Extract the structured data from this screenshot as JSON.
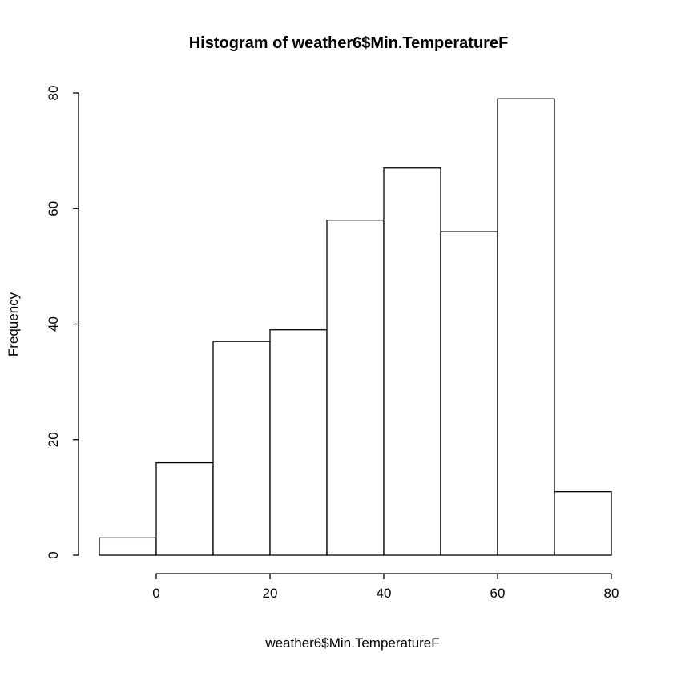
{
  "chart_data": {
    "type": "bar",
    "title": "Histogram of weather6$Min.TemperatureF",
    "xlabel": "weather6$Min.TemperatureF",
    "ylabel": "Frequency",
    "bin_edges": [
      -10,
      0,
      10,
      20,
      30,
      40,
      50,
      60,
      70,
      80
    ],
    "values": [
      3,
      16,
      37,
      39,
      58,
      67,
      56,
      79,
      11
    ],
    "xlim": [
      -10,
      80
    ],
    "ylim": [
      0,
      80
    ],
    "x_ticks": [
      0,
      20,
      40,
      60,
      80
    ],
    "y_ticks": [
      0,
      20,
      40,
      60,
      80
    ],
    "grid": false,
    "bar_fill": "#ffffff",
    "bar_stroke": "#000000"
  }
}
